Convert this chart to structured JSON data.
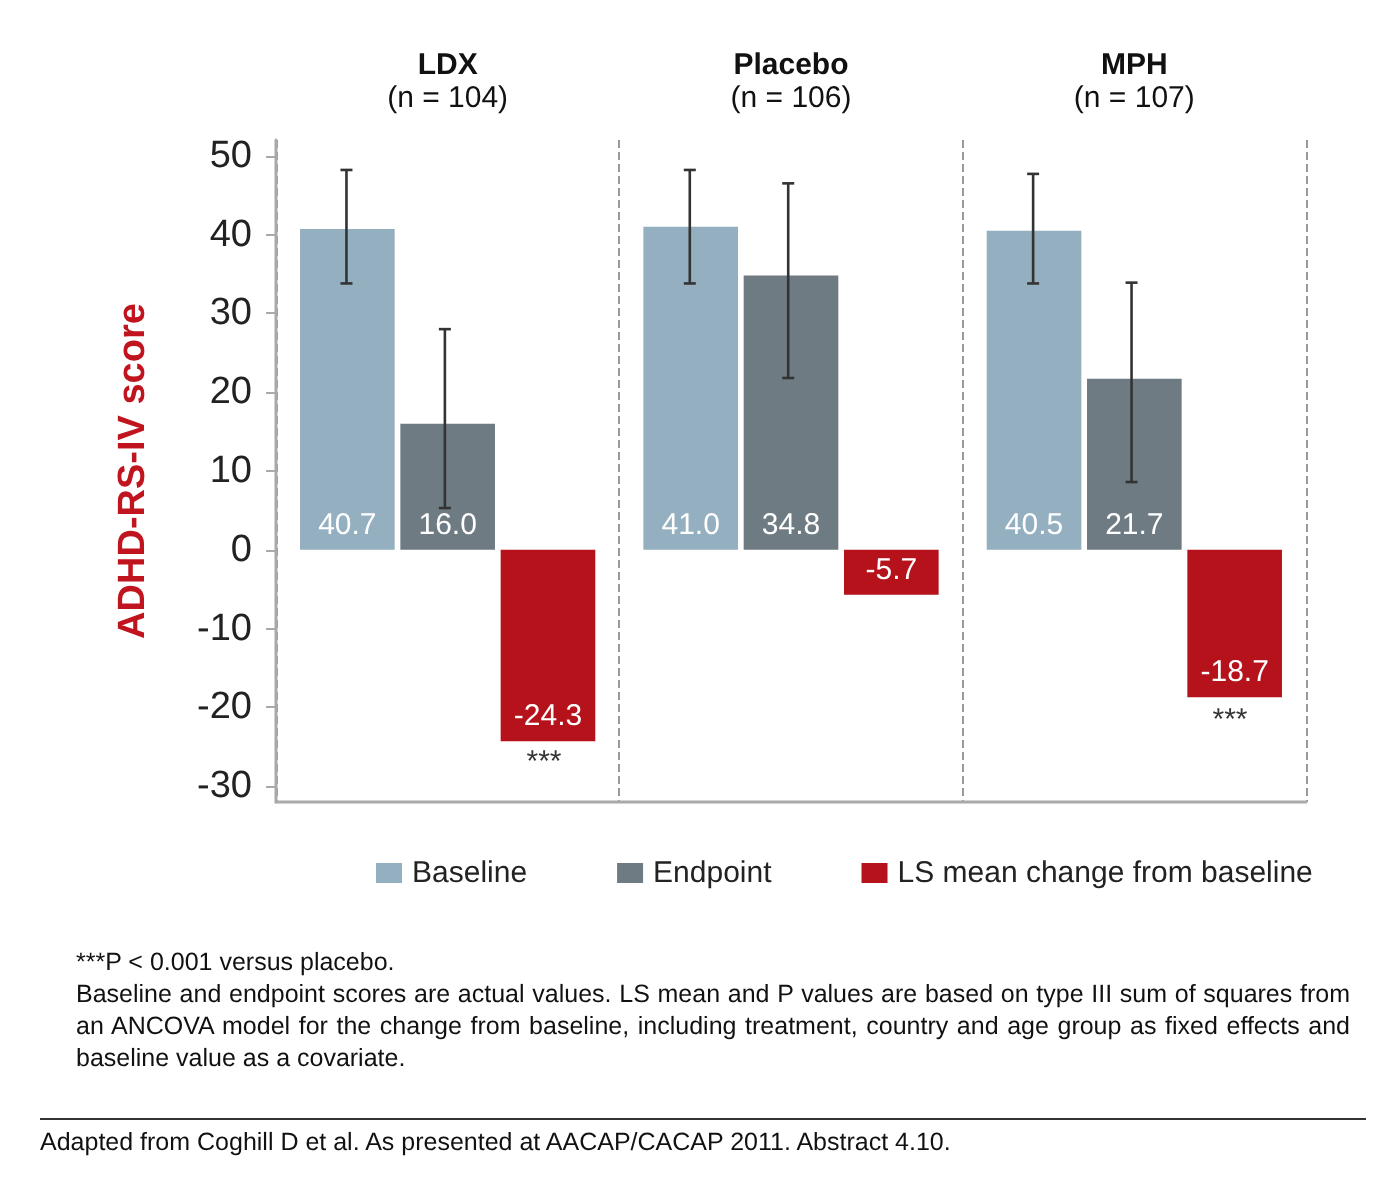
{
  "chart_data": {
    "type": "bar",
    "categories": [
      "LDX\n(n = 104)",
      "Placebo\n(n = 106)",
      "MPH\n(n = 107)"
    ],
    "ylabel": "ADHD-RS-IV score",
    "series": [
      {
        "name": "Baseline",
        "color": "#94afbf",
        "values": [
          40.7,
          41.0,
          40.5
        ],
        "errors": [
          [
            33.8,
            48.2
          ],
          [
            33.8,
            48.2
          ],
          [
            33.8,
            47.7
          ]
        ],
        "value_labels": [
          "40.7",
          "41.0",
          "40.5"
        ]
      },
      {
        "name": "Endpoint",
        "color": "#6f7b82",
        "values": [
          16.0,
          34.8,
          21.7
        ],
        "errors": [
          [
            5.3,
            28.0
          ],
          [
            21.8,
            46.5
          ],
          [
            8.6,
            33.9
          ]
        ],
        "value_labels": [
          "16.0",
          "34.8",
          "21.7"
        ]
      },
      {
        "name": "LS mean change from baseline",
        "color": "#b5121b",
        "values": [
          -24.3,
          -5.7,
          -18.7
        ],
        "value_labels": [
          "-24.3",
          "-5.7",
          "-18.7"
        ]
      }
    ],
    "ylim": [
      -32,
      52
    ],
    "yticks": [
      -30,
      -20,
      -10,
      0,
      10,
      20,
      30,
      40,
      50
    ],
    "grid": "x",
    "legend": "bottom",
    "annotations": [
      "***",
      "***",
      "***P < 0.001 versus placebo.",
      "Baseline and endpoint scores are actual values. LS mean and P values are based on type III sum of squares from an ANCOVA model for the change from baseline, including treatment, country and age group as fixed effects and baseline value as a covariate.",
      "Adapted from Coghill D et al. As presented at AACAP/CACAP 2011. Abstract 4.10."
    ]
  }
}
